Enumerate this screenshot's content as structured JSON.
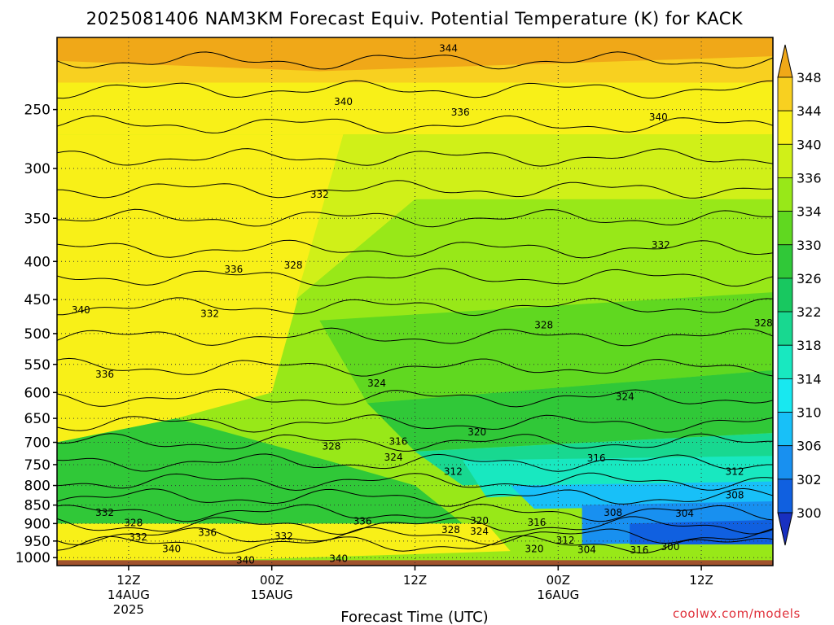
{
  "chart_data": {
    "type": "heatmap",
    "title": "2025081406 NAM3KM Forecast Equiv. Potential Temperature (K) for KACK",
    "xlabel": "Forecast Time (UTC)",
    "ylabel": "",
    "x_ticks": [
      {
        "lines": [
          "12Z",
          "14AUG",
          "2025"
        ],
        "hour": 6
      },
      {
        "lines": [
          "00Z",
          "15AUG"
        ],
        "hour": 18
      },
      {
        "lines": [
          "12Z"
        ],
        "hour": 30
      },
      {
        "lines": [
          "00Z",
          "16AUG"
        ],
        "hour": 42
      },
      {
        "lines": [
          "12Z"
        ],
        "hour": 54
      }
    ],
    "x_range_hours": [
      0,
      60
    ],
    "y_ticks": [
      250,
      300,
      350,
      400,
      450,
      500,
      550,
      600,
      650,
      700,
      750,
      800,
      850,
      900,
      950,
      1000
    ],
    "y_range_hpa": [
      200,
      1025
    ],
    "y_scale": "log-pressure (inverted)",
    "colorbar": {
      "unit": "K",
      "labels": [
        348,
        344,
        340,
        336,
        334,
        330,
        326,
        322,
        318,
        314,
        310,
        306,
        302,
        300
      ],
      "colors": [
        "#f0a818",
        "#f8d020",
        "#f8f018",
        "#d0f018",
        "#98e818",
        "#60d820",
        "#30c838",
        "#18c860",
        "#18d890",
        "#18e8c0",
        "#18e8f0",
        "#18c0f8",
        "#1890f0",
        "#1060e0",
        "#1830c0"
      ]
    },
    "contour_labels": [
      {
        "text": "344",
        "hour": 32.8,
        "p": 207
      },
      {
        "text": "340",
        "hour": 24,
        "p": 244
      },
      {
        "text": "336",
        "hour": 33.8,
        "p": 252
      },
      {
        "text": "340",
        "hour": 50.4,
        "p": 256
      },
      {
        "text": "332",
        "hour": 22,
        "p": 325
      },
      {
        "text": "336",
        "hour": 14.8,
        "p": 410
      },
      {
        "text": "328",
        "hour": 19.8,
        "p": 405
      },
      {
        "text": "332",
        "hour": 50.6,
        "p": 380
      },
      {
        "text": "340",
        "hour": 2,
        "p": 465
      },
      {
        "text": "332",
        "hour": 12.8,
        "p": 470
      },
      {
        "text": "328",
        "hour": 40.8,
        "p": 487
      },
      {
        "text": "328",
        "hour": 59.2,
        "p": 484
      },
      {
        "text": "336",
        "hour": 4,
        "p": 567
      },
      {
        "text": "324",
        "hour": 26.8,
        "p": 583
      },
      {
        "text": "324",
        "hour": 47.6,
        "p": 608
      },
      {
        "text": "320",
        "hour": 35.2,
        "p": 678
      },
      {
        "text": "316",
        "hour": 28.6,
        "p": 698
      },
      {
        "text": "328",
        "hour": 23,
        "p": 709
      },
      {
        "text": "324",
        "hour": 28.2,
        "p": 733
      },
      {
        "text": "316",
        "hour": 45.2,
        "p": 735
      },
      {
        "text": "312",
        "hour": 33.2,
        "p": 766
      },
      {
        "text": "312",
        "hour": 56.8,
        "p": 766
      },
      {
        "text": "308",
        "hour": 56.8,
        "p": 824
      },
      {
        "text": "332",
        "hour": 4,
        "p": 870
      },
      {
        "text": "308",
        "hour": 46.6,
        "p": 870
      },
      {
        "text": "304",
        "hour": 52.6,
        "p": 872
      },
      {
        "text": "320",
        "hour": 35.4,
        "p": 892
      },
      {
        "text": "336",
        "hour": 25.6,
        "p": 894
      },
      {
        "text": "328",
        "hour": 6.4,
        "p": 898
      },
      {
        "text": "316",
        "hour": 40.2,
        "p": 897
      },
      {
        "text": "328",
        "hour": 33,
        "p": 917
      },
      {
        "text": "324",
        "hour": 35.4,
        "p": 922
      },
      {
        "text": "336",
        "hour": 12.6,
        "p": 926
      },
      {
        "text": "332",
        "hour": 19,
        "p": 936
      },
      {
        "text": "332",
        "hour": 6.8,
        "p": 939
      },
      {
        "text": "312",
        "hour": 42.6,
        "p": 948
      },
      {
        "text": "340",
        "hour": 9.6,
        "p": 974
      },
      {
        "text": "320",
        "hour": 40,
        "p": 974
      },
      {
        "text": "304",
        "hour": 44.4,
        "p": 976
      },
      {
        "text": "316",
        "hour": 48.8,
        "p": 977
      },
      {
        "text": "300",
        "hour": 51.4,
        "p": 967
      },
      {
        "text": "340",
        "hour": 15.8,
        "p": 1008
      },
      {
        "text": "340",
        "hour": 23.6,
        "p": 1003
      }
    ],
    "credit": "coolwx.com/models"
  }
}
